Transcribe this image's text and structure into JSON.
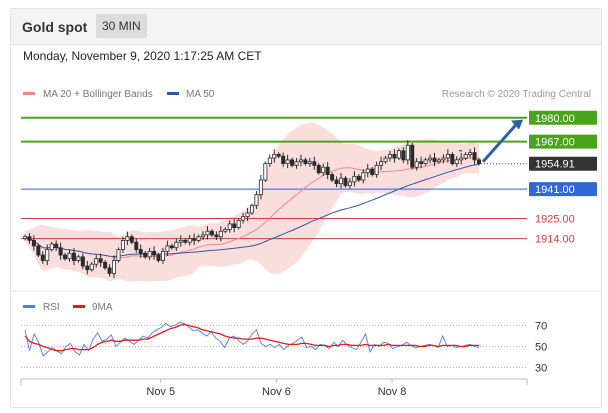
{
  "header": {
    "title": "Gold spot",
    "timeframe": "30 MIN"
  },
  "datetime": "Monday, November 9, 2020 1:17:25 AM CET",
  "credit": "Research © 2020 Trading Central",
  "colors": {
    "resistance": "#4aa31b",
    "support_line": "#2f67d4",
    "level_red": "#d23c3c",
    "current": "#333333",
    "candle": "#2b2b2b",
    "ma20": "#f08a8a",
    "ma50": "#2d5b9e",
    "bollinger": "#f9d7d7",
    "rsi": "#4c7cf0",
    "rsi_ma": "#e01c1c",
    "arrow": "#2d5fa6"
  },
  "chart_data": [
    {
      "type": "candlestick",
      "title": "Gold spot",
      "timeframe": "30 MIN",
      "legend": [
        {
          "name": "MA 20 + Bollinger Bands",
          "color": "#f08a8a"
        },
        {
          "name": "MA 50",
          "color": "#2d5b9e"
        }
      ],
      "x_ticks": [
        {
          "label": "Nov 5",
          "x": 58
        },
        {
          "label": "Nov 6",
          "x": 106
        },
        {
          "label": "Nov 8",
          "x": 154
        }
      ],
      "ylim": [
        1893,
        1987
      ],
      "levels": [
        {
          "label": "1980.00",
          "value": 1980.0,
          "kind": "resistance",
          "line": "solid"
        },
        {
          "label": "1967.00",
          "value": 1967.0,
          "kind": "resistance",
          "line": "solid"
        },
        {
          "label": "1954.91",
          "value": 1954.91,
          "kind": "current",
          "line": "dotted"
        },
        {
          "label": "1941.00",
          "value": 1941.0,
          "kind": "support",
          "line": "solid"
        },
        {
          "label": "1925.00",
          "value": 1925.0,
          "kind": "support",
          "line": "thin"
        },
        {
          "label": "1914.00",
          "value": 1914.0,
          "kind": "support",
          "line": "thin"
        }
      ],
      "close": [
        1915,
        1913,
        1910,
        1905,
        1902,
        1908,
        1911,
        1909,
        1905,
        1903,
        1906,
        1902,
        1904,
        1899,
        1897,
        1900,
        1903,
        1901,
        1898,
        1895,
        1902,
        1908,
        1913,
        1915,
        1912,
        1908,
        1906,
        1904,
        1907,
        1905,
        1902,
        1907,
        1910,
        1909,
        1912,
        1913,
        1912,
        1914,
        1913,
        1915,
        1916,
        1918,
        1916,
        1915,
        1918,
        1919,
        1922,
        1920,
        1924,
        1926,
        1928,
        1932,
        1938,
        1946,
        1955,
        1958,
        1960,
        1959,
        1955,
        1957,
        1954,
        1956,
        1957,
        1955,
        1956,
        1954,
        1950,
        1953,
        1949,
        1946,
        1944,
        1947,
        1943,
        1945,
        1948,
        1946,
        1950,
        1952,
        1949,
        1954,
        1956,
        1958,
        1960,
        1958,
        1962,
        1957,
        1965,
        1953,
        1956,
        1955,
        1957,
        1958,
        1956,
        1957,
        1958,
        1960,
        1955,
        1957,
        1958,
        1960,
        1961,
        1957,
        1955
      ]
    },
    {
      "type": "line",
      "title": "RSI",
      "legend": [
        {
          "name": "RSI",
          "color": "#4c7cf0"
        },
        {
          "name": "9MA",
          "color": "#e01c1c"
        }
      ],
      "ylim": [
        20,
        80
      ],
      "y_ticks": [
        70,
        50,
        30
      ],
      "series": [
        {
          "name": "RSI",
          "values": [
            66,
            46,
            62,
            54,
            41,
            45,
            49,
            46,
            43,
            50,
            53,
            45,
            42,
            52,
            46,
            57,
            63,
            55,
            57,
            61,
            50,
            54,
            58,
            55,
            52,
            56,
            60,
            58,
            63,
            66,
            68,
            72,
            69,
            70,
            73,
            72,
            69,
            65,
            66,
            63,
            60,
            64,
            58,
            55,
            49,
            58,
            60,
            56,
            52,
            55,
            62,
            66,
            53,
            50,
            52,
            49,
            52,
            47,
            51,
            53,
            56,
            59,
            49,
            50,
            47,
            52,
            51,
            48,
            54,
            50,
            56,
            51,
            49,
            47,
            54,
            62,
            45,
            52,
            50,
            54,
            53,
            48,
            50,
            51,
            54,
            51,
            49,
            50,
            51,
            52,
            51,
            49,
            60,
            50,
            51,
            49,
            50,
            51,
            52,
            50,
            49
          ]
        },
        {
          "name": "9MA",
          "values": [
            60,
            55,
            53,
            52,
            50,
            49,
            47,
            46,
            46,
            47,
            48,
            48,
            47,
            47,
            47,
            49,
            52,
            54,
            55,
            56,
            55,
            55,
            56,
            56,
            56,
            56,
            57,
            57,
            59,
            61,
            63,
            65,
            67,
            68,
            70,
            71,
            70,
            69,
            68,
            66,
            65,
            64,
            63,
            62,
            60,
            59,
            58,
            58,
            57,
            57,
            57,
            58,
            58,
            57,
            56,
            55,
            54,
            53,
            52,
            52,
            52,
            53,
            53,
            52,
            51,
            51,
            51,
            50,
            51,
            51,
            52,
            52,
            51,
            51,
            51,
            52,
            51,
            51,
            51,
            51,
            52,
            51,
            51,
            51,
            51,
            51,
            51,
            50,
            50,
            51,
            51,
            50,
            51,
            51,
            51,
            51,
            50,
            50,
            51,
            51,
            51
          ]
        }
      ]
    }
  ]
}
